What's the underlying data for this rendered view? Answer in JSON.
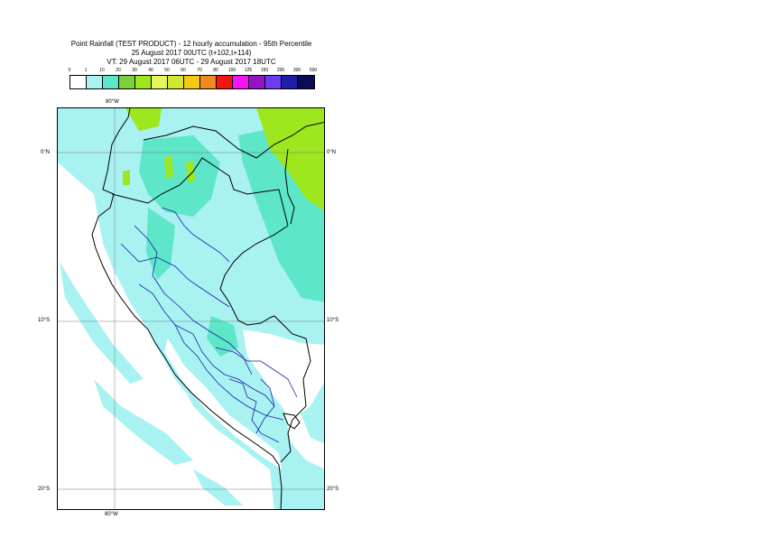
{
  "title": {
    "line1": "Point Rainfall (TEST PRODUCT) - 12 hourly accumulation - 95th Percentile",
    "line2": "25 August 2017 00UTC (t+102,t+114)",
    "line3": "VT: 29 August 2017 06UTC - 29 August 2017 18UTC"
  },
  "legend": {
    "ticks": [
      "0",
      "1",
      "10",
      "20",
      "30",
      "40",
      "50",
      "60",
      "70",
      "80",
      "100",
      "125",
      "150",
      "200",
      "300",
      "500"
    ],
    "colors": [
      "#ffffff",
      "#a8f2f2",
      "#5ee6c8",
      "#7cd13a",
      "#9ee61e",
      "#e6f55a",
      "#d2e632",
      "#f5c814",
      "#f08c1e",
      "#f51414",
      "#f514f5",
      "#9614c8",
      "#6e3cf0",
      "#1e1eaa",
      "#0a0a55"
    ]
  },
  "map": {
    "lon_label_top": "80°W",
    "lon_label_bottom": "80°W",
    "lat_labels": [
      "0°N",
      "10°S",
      "20°S"
    ],
    "colors": {
      "sea": "#a8f2f2",
      "land_light": "#a8f2f2",
      "land_medium": "#5ee6c8",
      "land_heavy": "#9ee61e",
      "dry": "#ffffff",
      "country_border": "#000000",
      "region_border": "#1e1eaa",
      "graticule": "#7a7a7a"
    }
  }
}
